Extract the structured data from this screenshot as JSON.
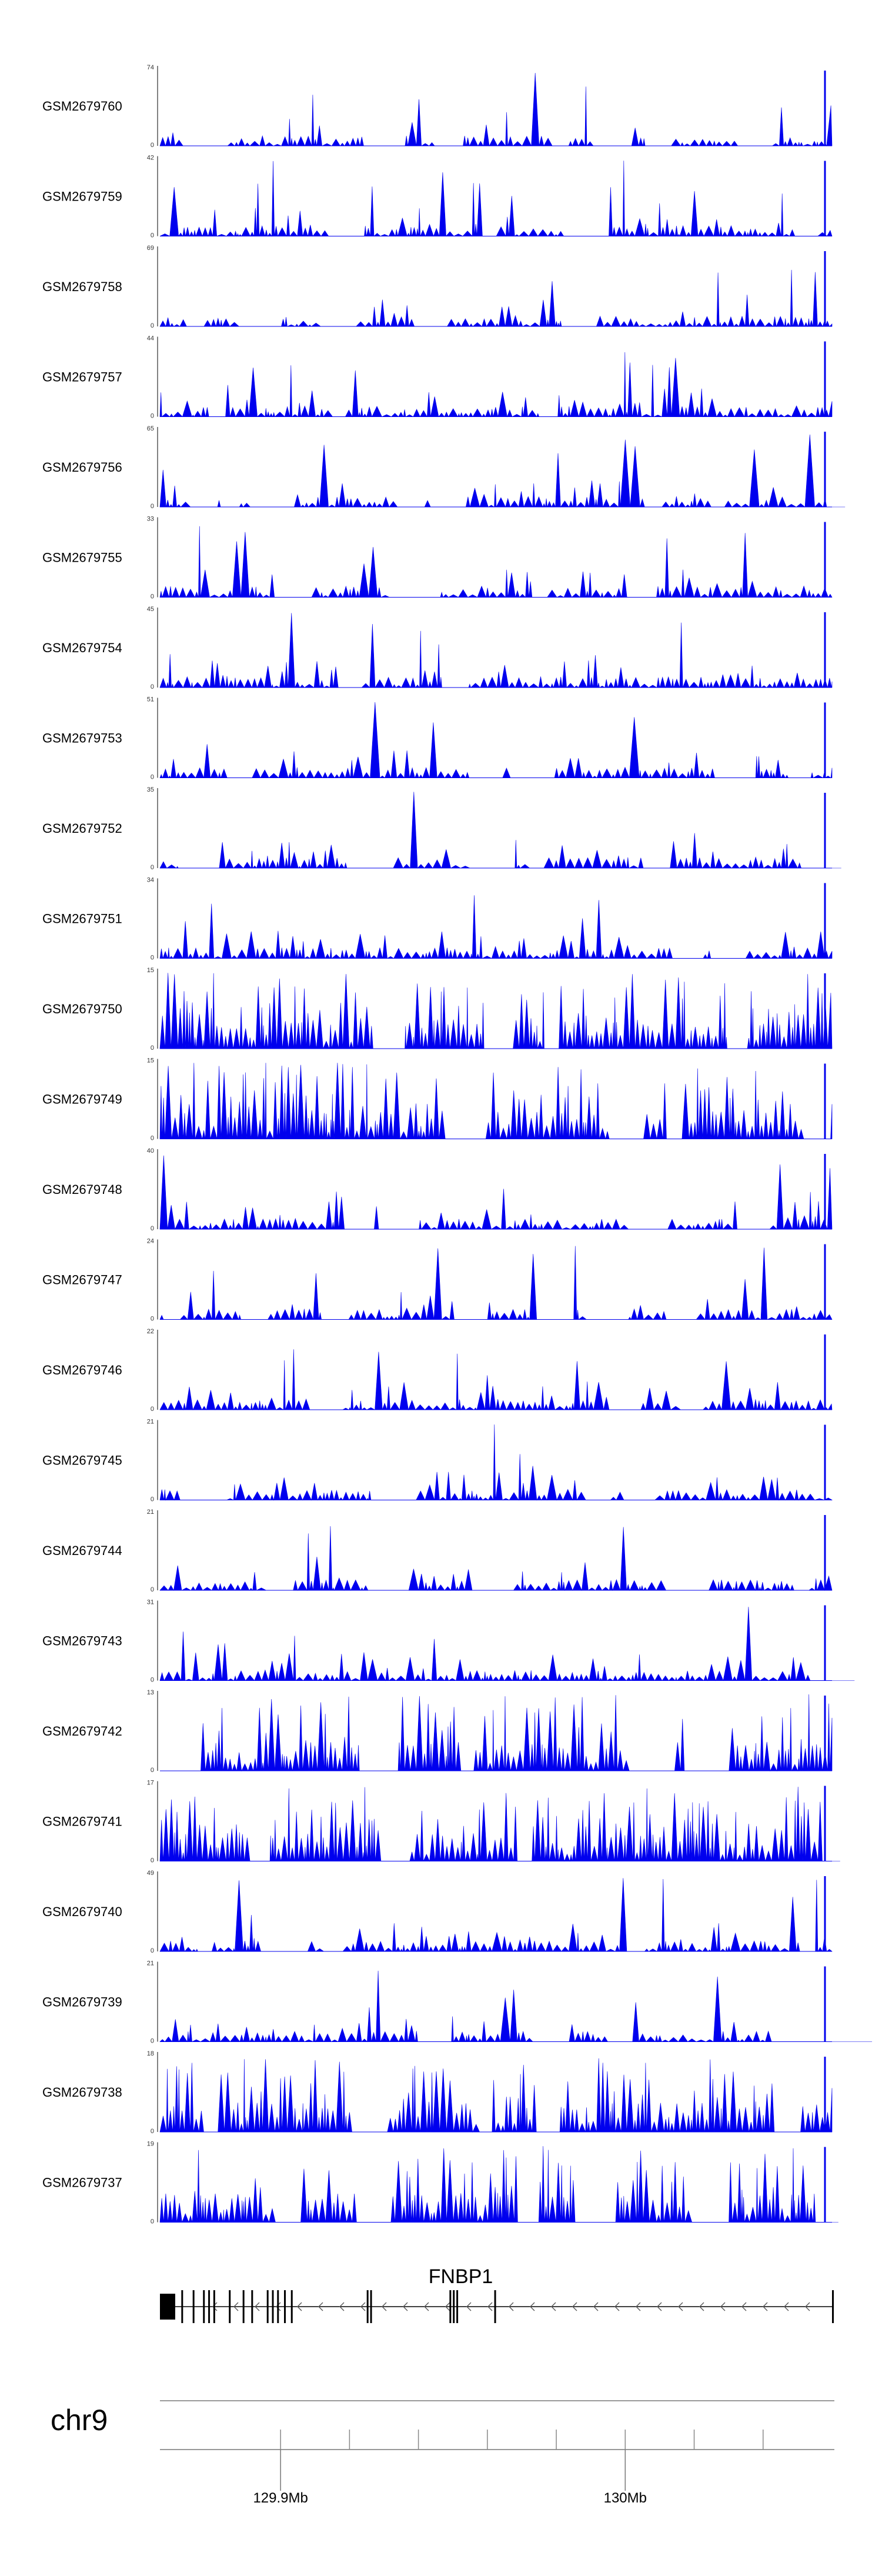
{
  "chart_data": {
    "type": "area",
    "title": "",
    "colors": {
      "signal": "#0000ee",
      "axis": "#000000",
      "ideogram": "#999999"
    },
    "region": {
      "start": 129.865,
      "end": 130.06,
      "units": "Mb"
    },
    "tracks": [
      {
        "name": "GSM2679760",
        "ymax": 74,
        "ymin": 0
      },
      {
        "name": "GSM2679759",
        "ymax": 42,
        "ymin": 0
      },
      {
        "name": "GSM2679758",
        "ymax": 69,
        "ymin": 0
      },
      {
        "name": "GSM2679757",
        "ymax": 44,
        "ymin": 0
      },
      {
        "name": "GSM2679756",
        "ymax": 65,
        "ymin": 0
      },
      {
        "name": "GSM2679755",
        "ymax": 33,
        "ymin": 0
      },
      {
        "name": "GSM2679754",
        "ymax": 45,
        "ymin": 0
      },
      {
        "name": "GSM2679753",
        "ymax": 51,
        "ymin": 0
      },
      {
        "name": "GSM2679752",
        "ymax": 35,
        "ymin": 0
      },
      {
        "name": "GSM2679751",
        "ymax": 34,
        "ymin": 0
      },
      {
        "name": "GSM2679750",
        "ymax": 15,
        "ymin": 0
      },
      {
        "name": "GSM2679749",
        "ymax": 15,
        "ymin": 0
      },
      {
        "name": "GSM2679748",
        "ymax": 40,
        "ymin": 0
      },
      {
        "name": "GSM2679747",
        "ymax": 24,
        "ymin": 0
      },
      {
        "name": "GSM2679746",
        "ymax": 22,
        "ymin": 0
      },
      {
        "name": "GSM2679745",
        "ymax": 21,
        "ymin": 0
      },
      {
        "name": "GSM2679744",
        "ymax": 21,
        "ymin": 0
      },
      {
        "name": "GSM2679743",
        "ymax": 31,
        "ymin": 0
      },
      {
        "name": "GSM2679742",
        "ymax": 13,
        "ymin": 0
      },
      {
        "name": "GSM2679741",
        "ymax": 17,
        "ymin": 0
      },
      {
        "name": "GSM2679740",
        "ymax": 49,
        "ymin": 0
      },
      {
        "name": "GSM2679739",
        "ymax": 21,
        "ymin": 0
      },
      {
        "name": "GSM2679738",
        "ymax": 18,
        "ymin": 0
      },
      {
        "name": "GSM2679737",
        "ymax": 19,
        "ymin": 0
      }
    ],
    "gene": {
      "name": "FNBP1",
      "strand": "-",
      "start": 129.865,
      "end": 130.06,
      "exons": [
        129.865,
        129.8712,
        129.8745,
        129.8775,
        129.879,
        129.8805,
        129.885,
        129.889,
        129.8915,
        129.896,
        129.8975,
        129.899,
        129.901,
        129.903,
        129.925,
        129.926,
        129.949,
        129.95,
        129.951,
        129.962,
        130.06
      ]
    },
    "chromosome": "chr9",
    "axis": {
      "major_ticks": [
        {
          "pos": 129.9,
          "label": "129.9Mb"
        },
        {
          "pos": 130.0,
          "label": "130Mb"
        }
      ],
      "minor_ticks": [
        129.9,
        129.92,
        129.94,
        129.96,
        129.98,
        130.0,
        130.02,
        130.04
      ]
    }
  }
}
